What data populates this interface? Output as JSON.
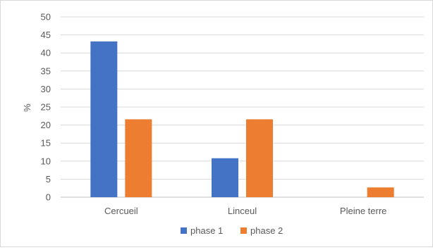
{
  "chart_data": {
    "type": "bar",
    "title": "",
    "xlabel": "",
    "ylabel": "%",
    "ylim": [
      0,
      50
    ],
    "yticks": [
      0,
      5,
      10,
      15,
      20,
      25,
      30,
      35,
      40,
      45,
      50
    ],
    "grid": true,
    "legend_position": "bottom",
    "categories": [
      "Cercueil",
      "Linceul",
      "Pleine terre"
    ],
    "series": [
      {
        "name": "phase 1",
        "color": "#4472c4",
        "values": [
          43.2,
          10.8,
          0
        ]
      },
      {
        "name": "phase 2",
        "color": "#ed7d31",
        "values": [
          21.6,
          21.6,
          2.7
        ]
      }
    ]
  }
}
